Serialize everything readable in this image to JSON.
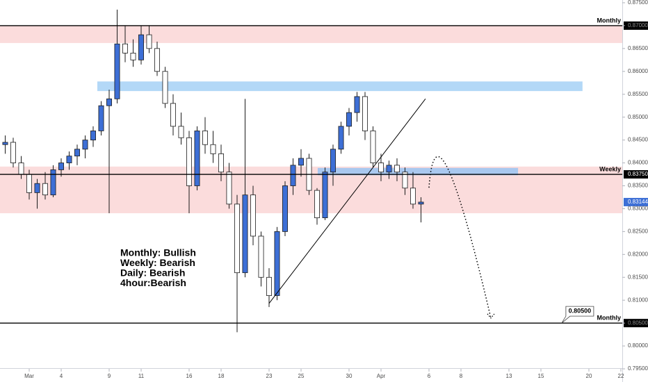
{
  "chart_data": {
    "type": "candlestick",
    "x": [
      -1.5,
      -1,
      -0.5,
      0,
      0.5,
      1,
      1.5,
      2,
      2.5,
      3,
      3.5,
      4,
      4.5,
      5,
      5.5,
      6,
      6.5,
      7,
      7.5,
      8,
      8.5,
      9,
      9.5,
      10,
      10.5,
      11,
      11.5,
      12,
      12.5,
      13,
      13.5,
      14,
      14.5,
      15,
      15.5,
      16,
      16.5,
      17,
      17.5,
      18,
      18.5,
      19,
      19.5,
      20,
      20.5,
      21,
      21.5,
      22,
      22.5,
      23,
      23.5,
      24,
      24.5
    ],
    "open": [
      0.844,
      0.8445,
      0.84,
      0.8375,
      0.8335,
      0.8355,
      0.833,
      0.8385,
      0.84,
      0.8415,
      0.843,
      0.845,
      0.847,
      0.8525,
      0.854,
      0.866,
      0.864,
      0.8625,
      0.868,
      0.865,
      0.86,
      0.853,
      0.848,
      0.8455,
      0.835,
      0.847,
      0.844,
      0.842,
      0.838,
      0.831,
      0.816,
      0.833,
      0.824,
      0.815,
      0.811,
      0.825,
      0.835,
      0.8395,
      0.841,
      0.834,
      0.828,
      0.838,
      0.843,
      0.848,
      0.851,
      0.8545,
      0.847,
      0.84,
      0.838,
      0.8395,
      0.838,
      0.8345,
      0.831
    ],
    "high": [
      0.846,
      0.8455,
      0.8415,
      0.8385,
      0.8365,
      0.838,
      0.8395,
      0.841,
      0.8425,
      0.844,
      0.846,
      0.848,
      0.8535,
      0.856,
      0.8735,
      0.87,
      0.867,
      0.87,
      0.87,
      0.8665,
      0.861,
      0.855,
      0.851,
      0.847,
      0.848,
      0.85,
      0.847,
      0.844,
      0.84,
      0.833,
      0.854,
      0.835,
      0.825,
      0.817,
      0.826,
      0.836,
      0.841,
      0.843,
      0.842,
      0.8345,
      0.839,
      0.844,
      0.849,
      0.852,
      0.8555,
      0.8555,
      0.848,
      0.842,
      0.8405,
      0.841,
      0.839,
      0.838,
      0.8325
    ],
    "low": [
      0.842,
      0.839,
      0.8365,
      0.832,
      0.83,
      0.832,
      0.8325,
      0.837,
      0.8385,
      0.8395,
      0.841,
      0.8435,
      0.846,
      0.829,
      0.853,
      0.862,
      0.861,
      0.8615,
      0.864,
      0.859,
      0.852,
      0.846,
      0.844,
      0.829,
      0.834,
      0.842,
      0.84,
      0.836,
      0.83,
      0.803,
      0.815,
      0.822,
      0.813,
      0.8085,
      0.81,
      0.824,
      0.833,
      0.837,
      0.833,
      0.8265,
      0.8275,
      0.835,
      0.842,
      0.846,
      0.849,
      0.845,
      0.839,
      0.836,
      0.8365,
      0.836,
      0.833,
      0.83,
      0.827
    ],
    "close": [
      0.8445,
      0.84,
      0.8375,
      0.8335,
      0.8355,
      0.833,
      0.8385,
      0.84,
      0.8415,
      0.843,
      0.845,
      0.847,
      0.8525,
      0.854,
      0.866,
      0.864,
      0.8625,
      0.868,
      0.865,
      0.86,
      0.853,
      0.848,
      0.8455,
      0.835,
      0.847,
      0.844,
      0.842,
      0.838,
      0.831,
      0.816,
      0.833,
      0.824,
      0.815,
      0.811,
      0.825,
      0.835,
      0.8395,
      0.841,
      0.834,
      0.828,
      0.838,
      0.843,
      0.848,
      0.851,
      0.8545,
      0.847,
      0.84,
      0.838,
      0.8395,
      0.838,
      0.8345,
      0.831,
      0.83144
    ],
    "up_color": "#3d6fd6",
    "down_color": "#ffffff",
    "xlim": [
      -1.826,
      37.087
    ],
    "xticks": [
      {
        "value": 0,
        "label": "Mar"
      },
      {
        "value": 2,
        "label": "4"
      },
      {
        "value": 5,
        "label": "9"
      },
      {
        "value": 7,
        "label": "11"
      },
      {
        "value": 10,
        "label": "16"
      },
      {
        "value": 12,
        "label": "18"
      },
      {
        "value": 15,
        "label": "23"
      },
      {
        "value": 17,
        "label": "25"
      },
      {
        "value": 20,
        "label": "30"
      },
      {
        "value": 22,
        "label": "Apr"
      },
      {
        "value": 25,
        "label": "6"
      },
      {
        "value": 27,
        "label": "8"
      },
      {
        "value": 30,
        "label": "13"
      },
      {
        "value": 32,
        "label": "15"
      },
      {
        "value": 35,
        "label": "20"
      },
      {
        "value": 37,
        "label": "22"
      }
    ],
    "ylim": [
      0.7944,
      0.8756
    ],
    "yticks": [
      {
        "value": 0.795,
        "label": "0.79500"
      },
      {
        "value": 0.8,
        "label": "0.80000"
      },
      {
        "value": 0.805,
        "label": "0.80500"
      },
      {
        "value": 0.81,
        "label": "0.81000"
      },
      {
        "value": 0.815,
        "label": "0.81500"
      },
      {
        "value": 0.82,
        "label": "0.82000"
      },
      {
        "value": 0.825,
        "label": "0.82500"
      },
      {
        "value": 0.83,
        "label": "0.83000"
      },
      {
        "value": 0.835,
        "label": "0.83500"
      },
      {
        "value": 0.84,
        "label": "0.84000"
      },
      {
        "value": 0.845,
        "label": "0.84500"
      },
      {
        "value": 0.85,
        "label": "0.85000"
      },
      {
        "value": 0.855,
        "label": "0.85500"
      },
      {
        "value": 0.86,
        "label": "0.86000"
      },
      {
        "value": 0.865,
        "label": "0.86500"
      },
      {
        "value": 0.87,
        "label": "0.87000"
      },
      {
        "value": 0.875,
        "label": "0.87500"
      }
    ],
    "zones": [
      {
        "y": [
          0.87,
          0.8662
        ],
        "color": "#fbdcdc"
      },
      {
        "y": [
          0.8392,
          0.829
        ],
        "color": "#fbdcdc"
      },
      {
        "x": [
          4.26,
          34.6
        ],
        "y": [
          0.8578,
          0.8557
        ],
        "color": "#b3d8f7"
      },
      {
        "x": [
          18.04,
          30.57
        ],
        "y": [
          0.8389,
          0.8373
        ],
        "color": "#a9c8ef"
      }
    ],
    "levels": [
      {
        "name": "Monthly",
        "value": 0.87,
        "value_label": "0.87000"
      },
      {
        "name": "Weekly",
        "value": 0.8375,
        "value_label": "0.83750"
      },
      {
        "name": "Monthly",
        "value": 0.805,
        "value_label": "0.80500"
      }
    ],
    "trendline": {
      "x": [
        15,
        24.78
      ],
      "y": [
        0.8093,
        0.854
      ]
    },
    "projection": {
      "x": [
        25,
        26.2,
        28.87
      ],
      "y": [
        0.8346,
        0.8386,
        0.8061
      ]
    },
    "callout": {
      "x": 33.3,
      "y": 0.805,
      "label": "0.80500"
    },
    "last_label": "0.83144",
    "annotation": [
      "Monthly: Bullish",
      "Weekly: Bearish",
      "Daily: Bearish",
      "4hour:Bearish"
    ]
  }
}
